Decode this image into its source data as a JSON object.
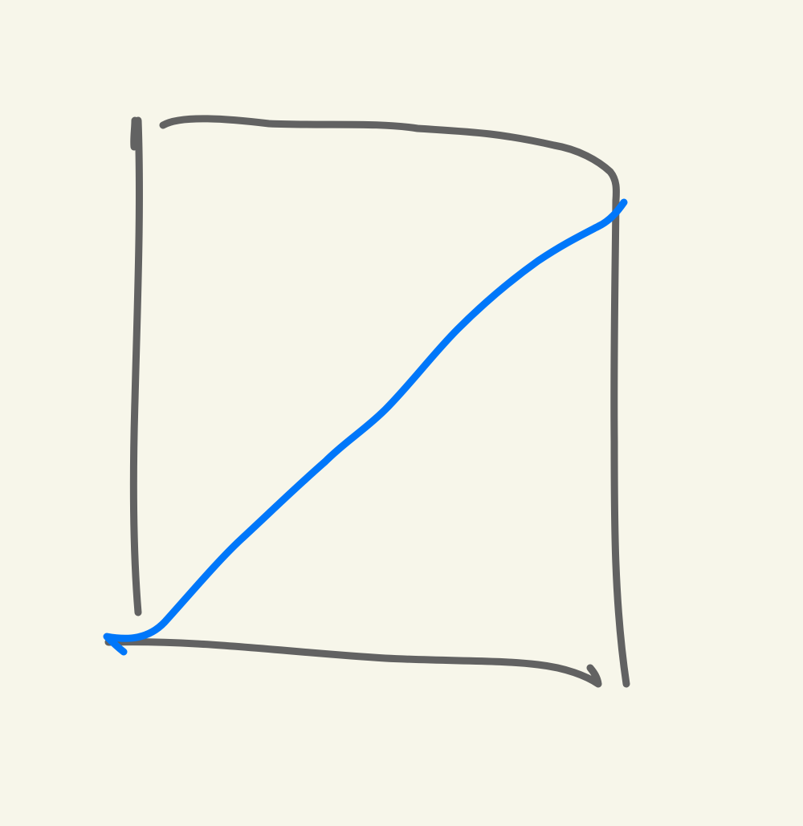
{
  "canvas": {
    "background_color": "#f7f6ea"
  },
  "strokes": {
    "frame_color": "#626262",
    "diagonal_color": "#0077fa"
  },
  "icons": {
    "frame": "hand-drawn-rectangle-outline",
    "diagonal": "hand-drawn-diagonal-line"
  }
}
